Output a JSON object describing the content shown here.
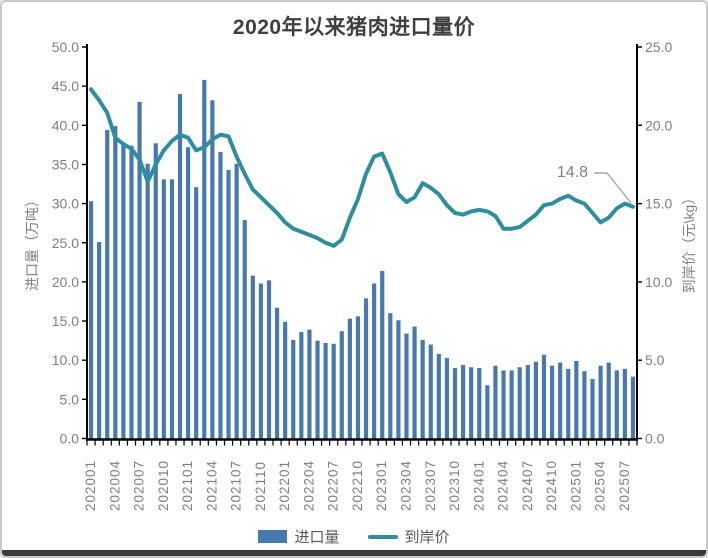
{
  "title": "2020年以来猪肉进口量价",
  "window": {
    "background": "#ffffff",
    "border_color": "#c9c9c9",
    "bottom_bar_color": "#3a3a3a"
  },
  "colors": {
    "bar": "#4879ad",
    "line": "#2e8e9e",
    "axis": "#000000",
    "tick_label": "#7f7f7f",
    "title": "#3f3f3f",
    "annotation_text": "#808080",
    "annotation_leader": "#a6a6a6",
    "legend_text": "#595959"
  },
  "annotation": {
    "text": "14.8"
  },
  "left_axis": {
    "title": "进口量（万吨）",
    "min": 0,
    "max": 50,
    "step": 5,
    "ticks": [
      "0.0",
      "5.0",
      "10.0",
      "15.0",
      "20.0",
      "25.0",
      "30.0",
      "35.0",
      "40.0",
      "45.0",
      "50.0"
    ]
  },
  "right_axis": {
    "title": "到岸价（元\\kg）",
    "min": 0,
    "max": 25,
    "step": 5,
    "ticks": [
      "0.0",
      "5.0",
      "10.0",
      "15.0",
      "20.0",
      "25.0"
    ]
  },
  "x_axis": {
    "label_interval": 3,
    "labels": [
      "202001",
      "202004",
      "202007",
      "202010",
      "202101",
      "202104",
      "202107",
      "202110",
      "202201",
      "202204",
      "202207",
      "202210",
      "202301",
      "202304",
      "202307",
      "202310",
      "202401",
      "202404",
      "202407",
      "202410",
      "202501",
      "202504",
      "202507"
    ]
  },
  "legend": {
    "items": [
      {
        "label": "进口量",
        "marker": "bar"
      },
      {
        "label": "到岸价",
        "marker": "line"
      }
    ]
  },
  "chart_data": {
    "type": "bar",
    "title": "2020年以来猪肉进口量价",
    "grid": false,
    "legend_position": "bottom",
    "ylabel_left": "进口量（万吨）",
    "ylabel_right": "到岸价（元\\kg）",
    "ylim_left": [
      0,
      50
    ],
    "ylim_right": [
      0,
      25
    ],
    "categories": [
      "202001",
      "202002",
      "202003",
      "202004",
      "202005",
      "202006",
      "202007",
      "202008",
      "202009",
      "202010",
      "202011",
      "202012",
      "202101",
      "202102",
      "202103",
      "202104",
      "202105",
      "202106",
      "202107",
      "202108",
      "202109",
      "202110",
      "202111",
      "202112",
      "202201",
      "202202",
      "202203",
      "202204",
      "202205",
      "202206",
      "202207",
      "202208",
      "202209",
      "202210",
      "202211",
      "202212",
      "202301",
      "202302",
      "202303",
      "202304",
      "202305",
      "202306",
      "202307",
      "202308",
      "202309",
      "202310",
      "202311",
      "202312",
      "202401",
      "202402",
      "202403",
      "202404",
      "202405",
      "202406",
      "202407",
      "202408",
      "202409",
      "202410",
      "202411",
      "202412",
      "202501",
      "202502",
      "202503",
      "202504",
      "202505",
      "202506",
      "202507",
      "202508"
    ],
    "series": [
      {
        "name": "进口量",
        "type": "bar",
        "y_axis": "left",
        "color": "#4879ad",
        "values": [
          30.3,
          25.1,
          39.4,
          39.9,
          37.6,
          37.4,
          43.0,
          35.1,
          37.7,
          33.1,
          33.1,
          44.0,
          37.2,
          32.1,
          45.8,
          43.2,
          36.6,
          34.3,
          35.1,
          27.9,
          20.8,
          19.8,
          20.2,
          16.7,
          14.9,
          12.6,
          13.6,
          13.9,
          12.5,
          12.2,
          12.1,
          13.7,
          15.3,
          15.6,
          17.9,
          19.8,
          21.4,
          16.0,
          15.1,
          13.4,
          14.3,
          12.6,
          12.0,
          10.8,
          10.3,
          9.0,
          9.4,
          9.1,
          9.0,
          6.8,
          9.3,
          8.7,
          8.7,
          9.1,
          9.4,
          9.8,
          10.7,
          9.3,
          9.7,
          8.9,
          9.9,
          8.6,
          7.6,
          9.3,
          9.7,
          8.7,
          8.9,
          7.9
        ]
      },
      {
        "name": "到岸价",
        "type": "line",
        "y_axis": "right",
        "color": "#2e8e9e",
        "values": [
          22.3,
          21.6,
          20.8,
          19.2,
          18.8,
          18.5,
          17.8,
          16.4,
          17.5,
          18.4,
          19.0,
          19.4,
          19.2,
          18.4,
          18.6,
          19.1,
          19.4,
          19.3,
          18.0,
          16.9,
          15.9,
          15.4,
          14.9,
          14.4,
          13.8,
          13.4,
          13.2,
          13.0,
          12.8,
          12.5,
          12.3,
          12.7,
          14.1,
          15.3,
          16.9,
          18.0,
          18.2,
          17.0,
          15.6,
          15.1,
          15.4,
          16.3,
          16.0,
          15.6,
          14.9,
          14.4,
          14.3,
          14.5,
          14.6,
          14.5,
          14.2,
          13.4,
          13.4,
          13.5,
          13.9,
          14.3,
          14.9,
          15.0,
          15.3,
          15.5,
          15.2,
          15.0,
          14.4,
          13.8,
          14.1,
          14.7,
          15.0,
          14.8
        ]
      }
    ],
    "annotation": {
      "target": "202508",
      "series": "到岸价",
      "text": "14.8"
    }
  }
}
